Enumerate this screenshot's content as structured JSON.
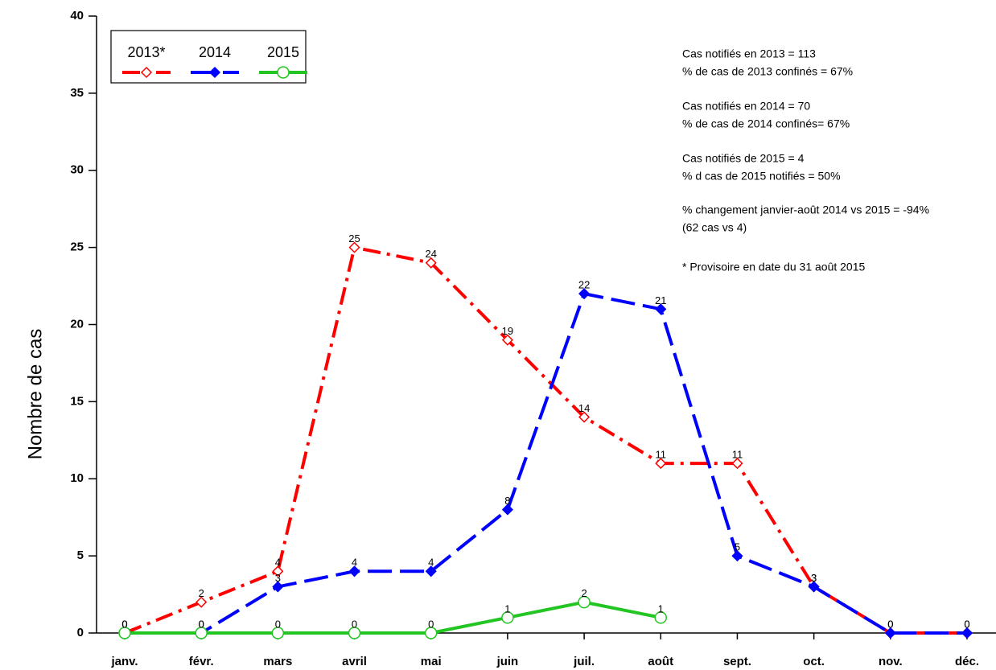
{
  "chart_data": {
    "type": "line",
    "ylabel": "Nombre de cas",
    "categories": [
      "janv.",
      "févr.",
      "mars",
      "avril",
      "mai",
      "juin",
      "juil.",
      "août",
      "sept.",
      "oct.",
      "nov.",
      "déc."
    ],
    "series": [
      {
        "name": "2013*",
        "color": "#ff0000",
        "dash": "dashdot",
        "marker": "diamond-open",
        "values": [
          0,
          2,
          4,
          25,
          24,
          19,
          14,
          11,
          11,
          3,
          0,
          0
        ]
      },
      {
        "name": "2014",
        "color": "#0000ff",
        "dash": "dashed",
        "marker": "diamond-filled",
        "values": [
          0,
          0,
          3,
          4,
          4,
          8,
          22,
          21,
          5,
          3,
          0,
          0
        ]
      },
      {
        "name": "2015",
        "color": "#22c522",
        "dash": "solid",
        "marker": "circle-open",
        "values": [
          0,
          0,
          0,
          0,
          0,
          1,
          2,
          1,
          null,
          null,
          null,
          null
        ]
      }
    ],
    "ylim": [
      0,
      40
    ],
    "yticks": [
      0,
      5,
      10,
      15,
      20,
      25,
      30,
      35,
      40
    ],
    "annotations": [
      "Cas notifiés en 2013 = 113",
      "% de cas de 2013 confinés = 67%",
      "Cas notifiés en 2014 = 70",
      "% de cas de 2014 confinés= 67%",
      "Cas notifiés de 2015 = 4",
      "% d cas de 2015 notifiés = 50%",
      "% changement janvier-août 2014 vs 2015 = -94%",
      "(62 cas vs 4)",
      "* Provisoire en date du 31 août 2015"
    ],
    "legend": "upper left"
  }
}
